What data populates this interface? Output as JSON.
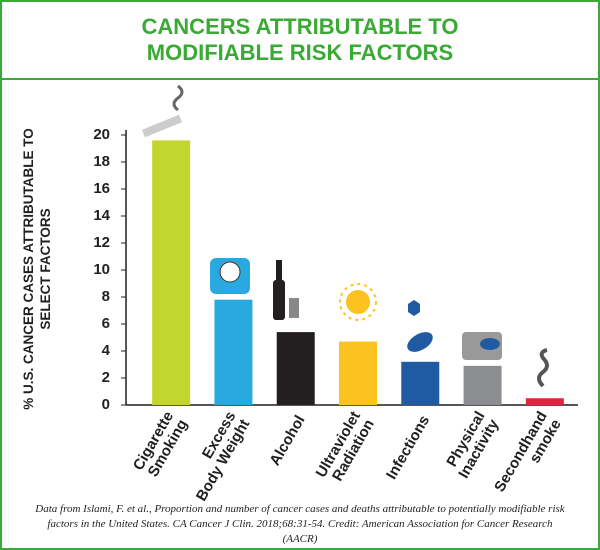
{
  "chart_data": {
    "type": "bar",
    "title": "CANCERS ATTRIBUTABLE TO MODIFIABLE RISK FACTORS",
    "y_label": "% U.S. CANCER CASES ATTRIBUTABLE TO SELECT FACTORS",
    "categories": [
      "Cigarette Smoking",
      "Excess Body Weight",
      "Alcohol",
      "Ultraviolet Radiation",
      "Infections",
      "Physical Inactivity",
      "Secondhand smoke"
    ],
    "values": [
      19.6,
      7.8,
      5.4,
      4.7,
      3.2,
      2.9,
      0.5
    ],
    "colors": [
      "#c3d52f",
      "#2aa8e0",
      "#231f20",
      "#fcc21f",
      "#1f5aa3",
      "#8b8d90",
      "#e0253f"
    ],
    "ylim": [
      0,
      20
    ],
    "yticks": [
      0,
      2,
      4,
      6,
      8,
      10,
      12,
      14,
      16,
      18,
      20
    ],
    "source": "Data from Islami, F. et al., Proportion and number of cancer cases and deaths attributable to potentially modifiable risk factors in the United States. CA Cancer J Clin. 2018;68:31-54. Credit: American Association for Cancer Research (AACR)"
  }
}
